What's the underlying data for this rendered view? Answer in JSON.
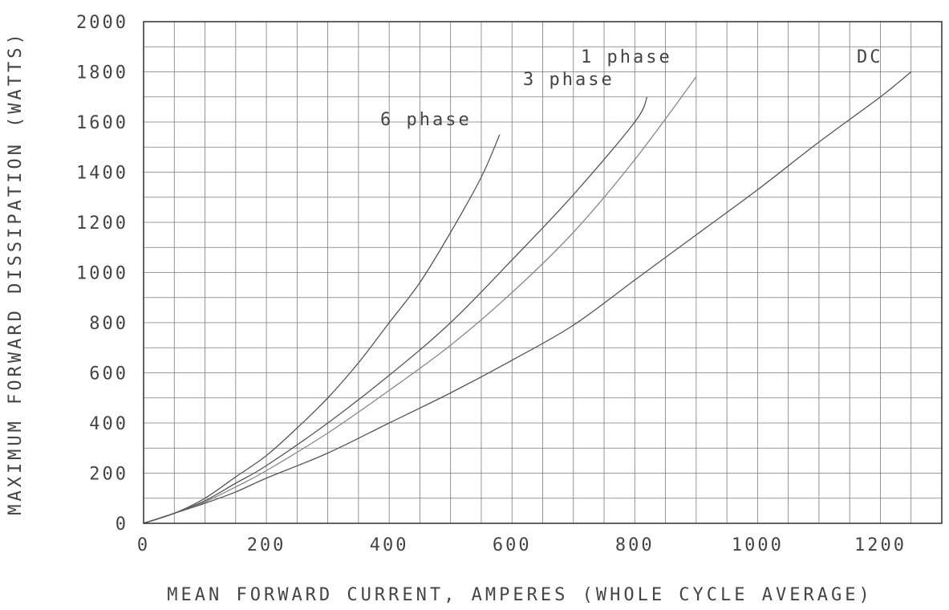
{
  "chart_data": {
    "type": "line",
    "xlabel": "MEAN FORWARD CURRENT, AMPERES  (WHOLE CYCLE AVERAGE)",
    "ylabel": "MAXIMUM FORWARD DISSIPATION  (WATTS)",
    "xlim": [
      0,
      1300
    ],
    "ylim": [
      0,
      2000
    ],
    "xticks": [
      0,
      200,
      400,
      600,
      800,
      1000,
      1200
    ],
    "xtick_labels": [
      "0",
      "200",
      "400",
      "600",
      "800",
      "1000",
      "1200"
    ],
    "yticks": [
      0,
      200,
      400,
      600,
      800,
      1000,
      1200,
      1400,
      1600,
      1800,
      2000
    ],
    "ytick_labels": [
      "0",
      "200",
      "400",
      "600",
      "800",
      "1000",
      "1200",
      "1400",
      "1600",
      "1800",
      "2000"
    ],
    "x_minor_step": 50,
    "y_minor_step": 100,
    "grid": true,
    "series": [
      {
        "name": "6 phase",
        "color": "#555555",
        "x": [
          0,
          50,
          100,
          150,
          200,
          250,
          300,
          350,
          400,
          450,
          500,
          550,
          580
        ],
        "y": [
          0,
          40,
          100,
          185,
          270,
          380,
          500,
          640,
          800,
          960,
          1160,
          1380,
          1550
        ]
      },
      {
        "name": "3 phase",
        "color": "#555555",
        "x": [
          0,
          50,
          100,
          150,
          200,
          300,
          400,
          500,
          600,
          700,
          800,
          820
        ],
        "y": [
          0,
          40,
          90,
          160,
          230,
          400,
          590,
          800,
          1050,
          1310,
          1600,
          1700
        ]
      },
      {
        "name": "1 phase",
        "color": "#888888",
        "x": [
          0,
          50,
          100,
          150,
          200,
          300,
          400,
          500,
          600,
          700,
          800,
          900
        ],
        "y": [
          0,
          40,
          85,
          145,
          210,
          360,
          530,
          710,
          920,
          1160,
          1450,
          1780
        ]
      },
      {
        "name": "DC",
        "color": "#555555",
        "x": [
          0,
          50,
          100,
          150,
          200,
          300,
          400,
          500,
          600,
          700,
          800,
          900,
          1000,
          1100,
          1200,
          1250
        ],
        "y": [
          0,
          40,
          80,
          125,
          180,
          280,
          400,
          520,
          650,
          790,
          970,
          1150,
          1330,
          1520,
          1700,
          1800
        ]
      }
    ],
    "annotations": [
      "6 phase",
      "3 phase",
      "1 phase",
      "DC"
    ]
  }
}
